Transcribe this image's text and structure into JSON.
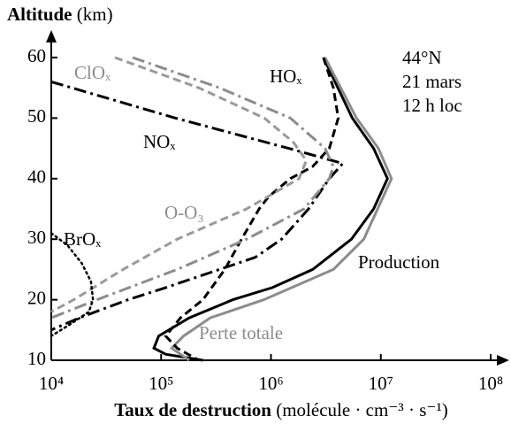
{
  "chart_data": {
    "type": "line",
    "y_label": "Altitude",
    "y_unit": "(km)",
    "x_label": "Taux de destruction",
    "x_unit": "(molécule · cm⁻³ · s⁻¹)",
    "annotations": [
      "44°N",
      "21 mars",
      "12 h loc"
    ],
    "x_scale": "log",
    "xlim": [
      10000,
      100000000
    ],
    "xticks": [
      {
        "value": 10000,
        "label": "10⁴"
      },
      {
        "value": 100000,
        "label": "10⁵"
      },
      {
        "value": 1000000,
        "label": "10⁶"
      },
      {
        "value": 10000000,
        "label": "10⁷"
      },
      {
        "value": 100000000,
        "label": "10⁸"
      }
    ],
    "ylim": [
      10,
      60
    ],
    "yticks": [
      10,
      20,
      30,
      40,
      50,
      60
    ],
    "series": [
      {
        "name": "Production",
        "color": "#000000",
        "dash": "solid",
        "x": [
          3000000,
          5500000,
          8600000,
          11500000,
          8600000,
          5400000,
          2400000,
          1030000,
          450000,
          180000,
          95000,
          86000,
          110000,
          240000
        ],
        "y": [
          60,
          50,
          45,
          40,
          35,
          30,
          25,
          22,
          20,
          17,
          14,
          12,
          11,
          10
        ]
      },
      {
        "name": "Perte totale",
        "color": "#8c8c8c",
        "dash": "solid",
        "x": [
          3100000,
          6000000,
          9500000,
          12500000,
          7000000,
          3700000,
          860000,
          280000,
          160000,
          125000,
          180000
        ],
        "y": [
          60,
          50,
          45,
          40,
          30,
          25,
          20,
          17,
          14,
          12,
          10
        ]
      },
      {
        "name": "HOₓ",
        "color": "#000000",
        "dash": "dash",
        "x": [
          3000000,
          3700000,
          4100000,
          3400000,
          2400000,
          1500000,
          950000,
          780000,
          540000,
          380000,
          240000,
          150000,
          110000,
          140000,
          220000
        ],
        "y": [
          60,
          55,
          50,
          45,
          42,
          40,
          37,
          35,
          30,
          25,
          20,
          17,
          14,
          12,
          10
        ]
      },
      {
        "name": "NOₓ",
        "color": "#000000",
        "dash": "dashdot",
        "x": [
          10000,
          135000,
          1450000,
          4500000,
          3400000,
          2200000,
          1250000,
          720000,
          340000,
          110000,
          50000,
          18000,
          10000
        ],
        "y": [
          56,
          50,
          45,
          42.5,
          40,
          35,
          30,
          27,
          25,
          22,
          20,
          17,
          15
        ]
      },
      {
        "name": "ClOₓ",
        "color": "#9a9a9a",
        "dash": "dash",
        "x": [
          38000,
          220000,
          870000,
          1600000,
          2100000,
          1800000,
          600000,
          140000,
          45000,
          16000,
          10000
        ],
        "y": [
          60,
          55,
          50,
          46,
          43,
          40,
          35,
          30,
          25,
          20,
          18
        ]
      },
      {
        "name": "O-O₃",
        "color": "#8c8c8c",
        "dash": "dashdot",
        "x": [
          55000,
          340000,
          1500000,
          3100000,
          3700000,
          3400000,
          2000000,
          600000,
          140000,
          26000,
          10000
        ],
        "y": [
          60,
          55,
          50,
          45,
          42,
          40,
          35,
          30,
          25,
          20,
          17
        ]
      },
      {
        "name": "BrOₓ",
        "color": "#000000",
        "dash": "dot",
        "x": [
          10000,
          14000,
          19000,
          23000,
          24000,
          22000,
          15000,
          10000
        ],
        "y": [
          31,
          29,
          26,
          23,
          20,
          18,
          16,
          14
        ]
      }
    ]
  }
}
